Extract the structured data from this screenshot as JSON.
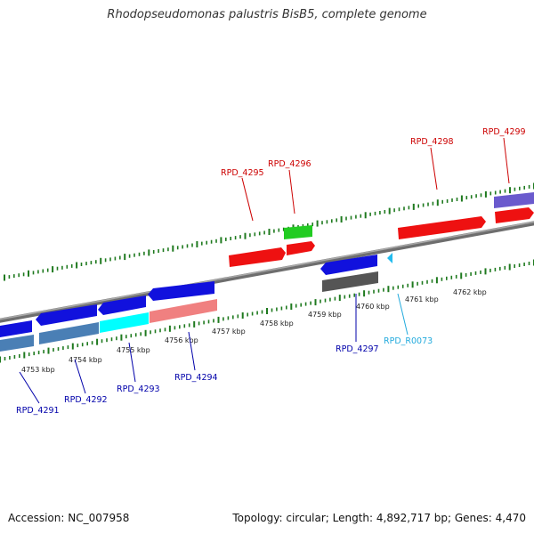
{
  "title": "Rhodopseudomonas palustris BisB5, complete genome",
  "footer": {
    "accession": "Accession: NC_007958",
    "summary": "Topology: circular; Length: 4,892,717 bp; Genes: 4,470"
  },
  "colors": {
    "backbone": "#7a7a7a",
    "ticks": "#1f7a1f",
    "forward_label": "#cc0000",
    "reverse_label": "#0000aa",
    "rna_label": "#22aadd"
  },
  "kbp_labels": [
    "4753 kbp",
    "4754 kbp",
    "4755 kbp",
    "4756 kbp",
    "4757 kbp",
    "4758 kbp",
    "4759 kbp",
    "4760 kbp",
    "4761 kbp",
    "4762 kbp"
  ],
  "forward_labels": [
    "RPD_4295",
    "RPD_4296",
    "RPD_4298",
    "RPD_4299"
  ],
  "reverse_labels": [
    "RPD_4291",
    "RPD_4292",
    "RPD_4293",
    "RPD_4294",
    "RPD_4297",
    "RPD_R0073"
  ],
  "features": [
    {
      "id": "RPD_4291",
      "strand": "reverse",
      "color": "#1111dd"
    },
    {
      "id": "RPD_4292",
      "strand": "reverse",
      "color": "#1111dd"
    },
    {
      "id": "RPD_4293",
      "strand": "reverse",
      "color": "#1111dd"
    },
    {
      "id": "RPD_4294",
      "strand": "reverse",
      "color": "#1111dd"
    },
    {
      "id": "RPD_4295",
      "strand": "forward",
      "color": "#ee1111"
    },
    {
      "id": "RPD_4296",
      "strand": "forward",
      "color": "#ee1111"
    },
    {
      "id": "RPD_4297",
      "strand": "reverse",
      "color": "#1111dd"
    },
    {
      "id": "RPD_R0073",
      "strand": "reverse",
      "color": "#22bbee"
    },
    {
      "id": "RPD_4298",
      "strand": "forward",
      "color": "#ee1111"
    },
    {
      "id": "RPD_4299",
      "strand": "forward",
      "color": "#ee1111"
    }
  ],
  "analysis_tracks": [
    {
      "name": "steelblue",
      "color": "#4a7fb5"
    },
    {
      "name": "cyan",
      "color": "#00ffff"
    },
    {
      "name": "salmon",
      "color": "#f08080"
    },
    {
      "name": "green",
      "color": "#22cc22"
    },
    {
      "name": "gray",
      "color": "#555555"
    },
    {
      "name": "purple",
      "color": "#6a5acd"
    }
  ]
}
